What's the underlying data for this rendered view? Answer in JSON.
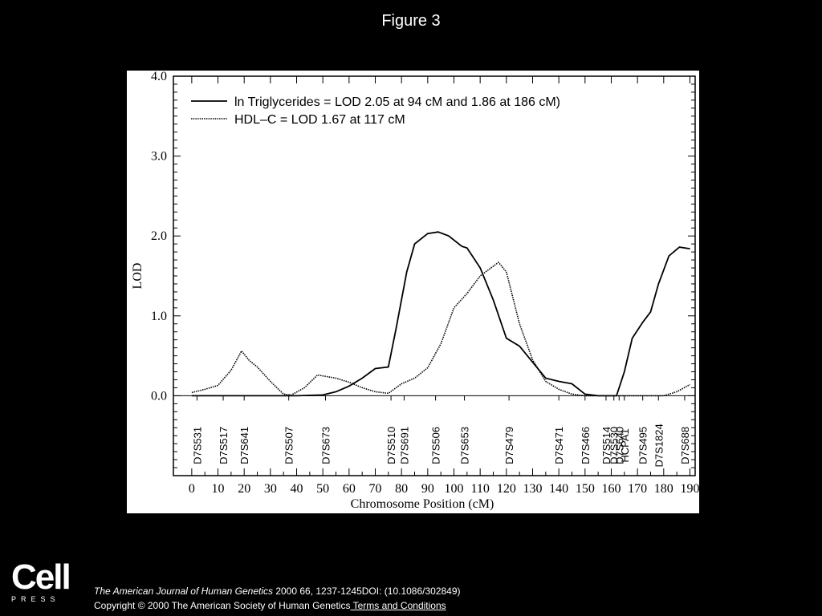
{
  "figure_title": "Figure 3",
  "logo": {
    "word": "Cell",
    "sub": "PRESS"
  },
  "citation": {
    "journal": "The American Journal of Human Genetics",
    "details": " 2000 66, 1237-1245DOI: (10.1086/302849)"
  },
  "copyright": {
    "text": "Copyright © 2000 The American Society of Human Genetics",
    "link": " Terms and Conditions"
  },
  "chart_data": {
    "type": "line",
    "xlabel": "Chromosome Position (cM)",
    "ylabel": "LOD",
    "xlim": [
      -7,
      192
    ],
    "ylim": [
      -1.0,
      4.0
    ],
    "x_ticks": [
      0,
      10,
      20,
      30,
      40,
      50,
      60,
      70,
      80,
      90,
      100,
      110,
      120,
      130,
      140,
      150,
      160,
      170,
      180,
      190
    ],
    "y_ticks": [
      {
        "value": 0.0,
        "label": "0.0"
      },
      {
        "value": 1.0,
        "label": "1.0"
      },
      {
        "value": 2.0,
        "label": "2.0"
      },
      {
        "value": 3.0,
        "label": "3.0"
      },
      {
        "value": 4.0,
        "label": "4.0"
      }
    ],
    "grid": false,
    "legend_position": "top-left",
    "series": [
      {
        "name": "ln Triglycerides = LOD 2.05 at 94 cM and 1.86 at 186 cM)",
        "style": "solid",
        "points": [
          [
            0,
            0
          ],
          [
            40,
            0
          ],
          [
            50,
            0.01
          ],
          [
            55,
            0.05
          ],
          [
            60,
            0.12
          ],
          [
            65,
            0.22
          ],
          [
            70,
            0.34
          ],
          [
            75,
            0.36
          ],
          [
            78,
            0.85
          ],
          [
            82,
            1.55
          ],
          [
            85,
            1.9
          ],
          [
            90,
            2.03
          ],
          [
            94,
            2.05
          ],
          [
            98,
            2.0
          ],
          [
            103,
            1.87
          ],
          [
            105,
            1.85
          ],
          [
            110,
            1.6
          ],
          [
            115,
            1.2
          ],
          [
            120,
            0.72
          ],
          [
            125,
            0.62
          ],
          [
            130,
            0.42
          ],
          [
            135,
            0.22
          ],
          [
            140,
            0.18
          ],
          [
            145,
            0.15
          ],
          [
            150,
            0.02
          ],
          [
            155,
            0
          ],
          [
            162,
            0
          ],
          [
            165,
            0.3
          ],
          [
            168,
            0.72
          ],
          [
            172,
            0.92
          ],
          [
            175,
            1.05
          ],
          [
            178,
            1.4
          ],
          [
            182,
            1.75
          ],
          [
            186,
            1.86
          ],
          [
            190,
            1.84
          ]
        ]
      },
      {
        "name": "HDL–C = LOD 1.67 at 117 cM",
        "style": "dotted",
        "points": [
          [
            0,
            0.04
          ],
          [
            5,
            0.08
          ],
          [
            10,
            0.13
          ],
          [
            15,
            0.32
          ],
          [
            19,
            0.56
          ],
          [
            22,
            0.44
          ],
          [
            25,
            0.36
          ],
          [
            30,
            0.18
          ],
          [
            35,
            0.02
          ],
          [
            38,
            0.01
          ],
          [
            43,
            0.1
          ],
          [
            48,
            0.26
          ],
          [
            55,
            0.22
          ],
          [
            60,
            0.17
          ],
          [
            65,
            0.1
          ],
          [
            70,
            0.05
          ],
          [
            75,
            0.03
          ],
          [
            80,
            0.15
          ],
          [
            85,
            0.22
          ],
          [
            90,
            0.35
          ],
          [
            95,
            0.65
          ],
          [
            100,
            1.1
          ],
          [
            105,
            1.28
          ],
          [
            110,
            1.5
          ],
          [
            117,
            1.67
          ],
          [
            120,
            1.55
          ],
          [
            125,
            0.9
          ],
          [
            130,
            0.45
          ],
          [
            135,
            0.18
          ],
          [
            140,
            0.08
          ],
          [
            145,
            0.02
          ],
          [
            150,
            0
          ],
          [
            160,
            0
          ],
          [
            180,
            0
          ],
          [
            185,
            0.05
          ],
          [
            190,
            0.14
          ]
        ]
      }
    ],
    "markers": [
      {
        "label": "D7S531",
        "pos": 2
      },
      {
        "label": "D7S517",
        "pos": 12
      },
      {
        "label": "D7S641",
        "pos": 20
      },
      {
        "label": "D7S507",
        "pos": 37
      },
      {
        "label": "D7S673",
        "pos": 51
      },
      {
        "label": "D7S510",
        "pos": 76
      },
      {
        "label": "D7S691",
        "pos": 81
      },
      {
        "label": "D7S506",
        "pos": 93
      },
      {
        "label": "D7S653",
        "pos": 104
      },
      {
        "label": "D7S479",
        "pos": 121
      },
      {
        "label": "D7S471",
        "pos": 140
      },
      {
        "label": "D7S466",
        "pos": 150
      },
      {
        "label": "D7S514",
        "pos": 158
      },
      {
        "label": "D7S530",
        "pos": 161
      },
      {
        "label": "D7S640",
        "pos": 163
      },
      {
        "label": "HCPA1",
        "pos": 165
      },
      {
        "label": "D7S495",
        "pos": 172
      },
      {
        "label": "D7S1824",
        "pos": 178
      },
      {
        "label": "D7S688",
        "pos": 188
      }
    ]
  }
}
